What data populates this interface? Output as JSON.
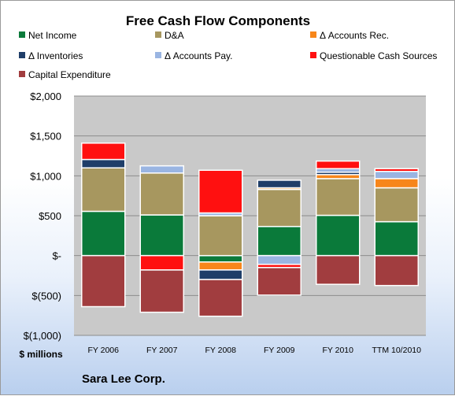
{
  "chart_data": {
    "type": "bar",
    "stacked": true,
    "title": "Free Cash Flow Components",
    "categories": [
      "FY 2006",
      "FY 2007",
      "FY 2008",
      "FY 2009",
      "FY 2010",
      "TTM 10/2010"
    ],
    "ylim": [
      -1000,
      2000
    ],
    "yticks": [
      -1000,
      -500,
      0,
      500,
      1000,
      1500,
      2000
    ],
    "ytick_labels": [
      "$(1,000)",
      "$(500)",
      "$-",
      "$500",
      "$1,000",
      "$1,500",
      "$2,000"
    ],
    "units_label": "$ millions",
    "grid": true,
    "legend_position": "top",
    "series": [
      {
        "name": "Net Income",
        "color": "#0a7a3a",
        "values": [
          555,
          510,
          -80,
          365,
          505,
          425
        ]
      },
      {
        "name": "D&A",
        "color": "#a7975f",
        "values": [
          545,
          525,
          500,
          465,
          460,
          425
        ]
      },
      {
        "name": "Δ Accounts Rec.",
        "color": "#f7861a",
        "values": [
          0,
          0,
          -100,
          20,
          50,
          115
        ]
      },
      {
        "name": "Δ Inventories",
        "color": "#1f3e69",
        "values": [
          105,
          0,
          -120,
          95,
          30,
          0
        ]
      },
      {
        "name": "Δ Accounts Pay.",
        "color": "#9ab5e2",
        "values": [
          0,
          90,
          35,
          -110,
          45,
          90
        ]
      },
      {
        "name": "Questionable Cash Sources",
        "color": "#ff1010",
        "values": [
          205,
          -180,
          535,
          -40,
          95,
          35
        ]
      },
      {
        "name": "Capital Expenditure",
        "color": "#a13d3f",
        "values": [
          -640,
          -530,
          -460,
          -345,
          -360,
          -375
        ]
      }
    ]
  },
  "footer": {
    "company": "Sara Lee Corp."
  }
}
